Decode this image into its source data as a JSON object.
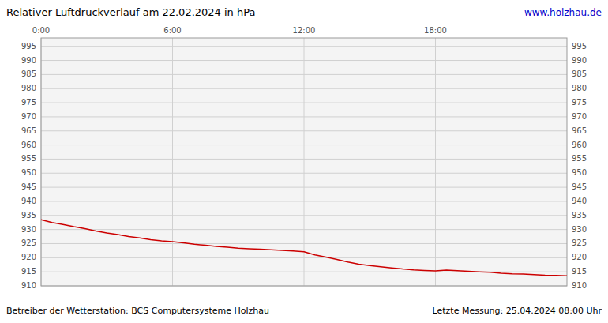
{
  "chart_data": {
    "type": "line",
    "title": "Relativer Luftdruckverlauf am 22.02.2024 in hPa",
    "annotations": [
      "www.holzhau.de",
      "Betreiber der Wetterstation: BCS Computersysteme Holzhau",
      "Letzte Messung: 25.04.2024 08:00 Uhr"
    ],
    "color": "#cc0000",
    "grid": true,
    "x": [
      0.0,
      0.5,
      1.0,
      1.5,
      2.0,
      2.5,
      3.0,
      3.5,
      4.0,
      4.5,
      5.0,
      5.5,
      6.0,
      6.5,
      7.0,
      7.5,
      8.0,
      8.5,
      9.0,
      9.5,
      10.0,
      10.5,
      11.0,
      11.5,
      12.0,
      12.5,
      13.0,
      13.5,
      14.0,
      14.5,
      15.0,
      15.5,
      16.0,
      16.5,
      17.0,
      17.5,
      18.0,
      18.5,
      19.0,
      19.5,
      20.0,
      20.5,
      21.0,
      21.5,
      22.0,
      22.5,
      23.0,
      23.5,
      23.99
    ],
    "values": [
      933.5,
      932.5,
      931.8,
      931.0,
      930.3,
      929.5,
      928.8,
      928.2,
      927.5,
      927.0,
      926.4,
      926.0,
      925.7,
      925.3,
      924.8,
      924.4,
      924.0,
      923.7,
      923.4,
      923.2,
      923.0,
      922.8,
      922.6,
      922.4,
      922.1,
      921.0,
      920.2,
      919.4,
      918.5,
      917.7,
      917.2,
      916.8,
      916.4,
      916.0,
      915.7,
      915.5,
      915.3,
      915.6,
      915.4,
      915.2,
      915.0,
      914.8,
      914.5,
      914.3,
      914.2,
      914.0,
      913.8,
      913.7,
      913.6
    ],
    "xlim": [
      0,
      24
    ],
    "xticks": [
      {
        "value": 0,
        "label": "0:00"
      },
      {
        "value": 6,
        "label": "6:00"
      },
      {
        "value": 12,
        "label": "12:00"
      },
      {
        "value": 18,
        "label": "18:00"
      }
    ],
    "ylim": [
      910,
      998
    ],
    "yticks": [
      910,
      915,
      920,
      925,
      930,
      935,
      940,
      945,
      950,
      955,
      960,
      965,
      970,
      975,
      980,
      985,
      990,
      995
    ],
    "y2lim": [
      910,
      998
    ],
    "y2ticks": [
      910,
      915,
      920,
      925,
      930,
      935,
      940,
      945,
      950,
      955,
      960,
      965,
      970,
      975,
      980,
      985,
      990,
      995
    ]
  }
}
